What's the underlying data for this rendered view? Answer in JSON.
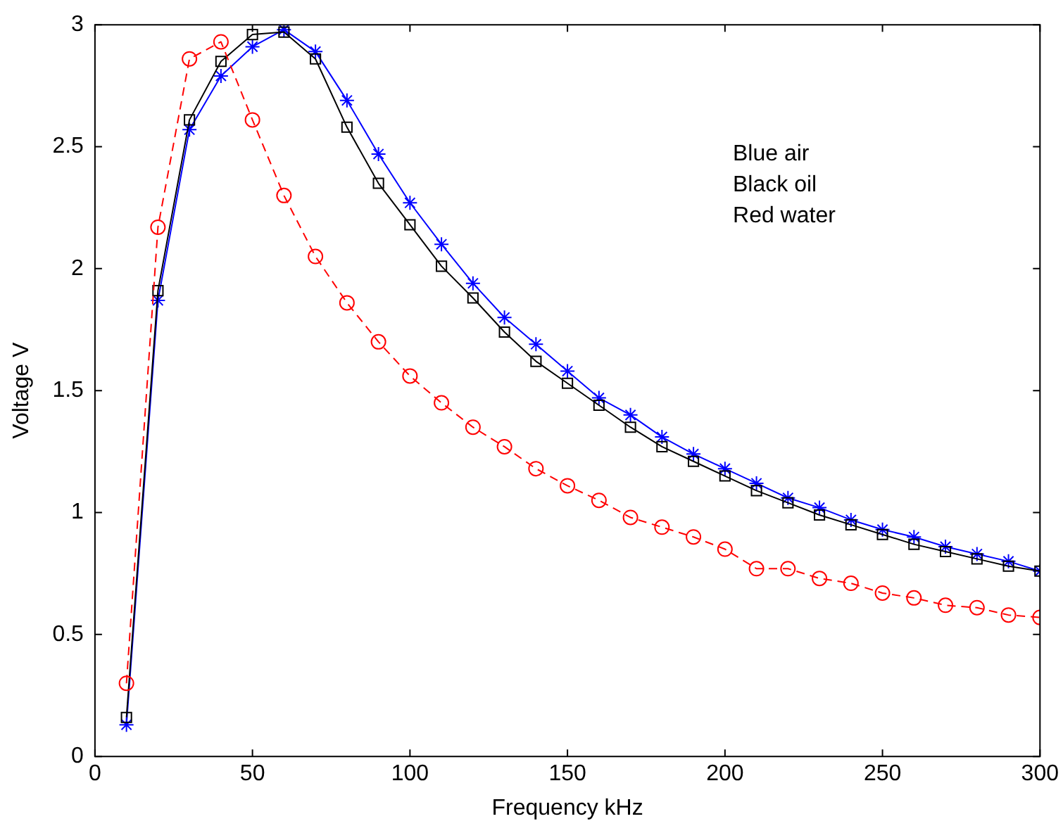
{
  "chart_data": {
    "type": "line",
    "xlabel": "Frequency kHz",
    "ylabel": "Voltage V",
    "x": [
      10,
      20,
      30,
      40,
      50,
      60,
      70,
      80,
      90,
      100,
      110,
      120,
      130,
      140,
      150,
      160,
      170,
      180,
      190,
      200,
      210,
      220,
      230,
      240,
      250,
      260,
      270,
      280,
      290,
      300
    ],
    "xlim": [
      0,
      300
    ],
    "xticks": [
      0,
      50,
      100,
      150,
      200,
      250,
      300
    ],
    "ylim": [
      0,
      3
    ],
    "yticks": [
      0,
      0.5,
      1,
      1.5,
      2,
      2.5,
      3
    ],
    "grid": false,
    "legend": false,
    "annotations": [
      "Blue air",
      "Black oil",
      "Red water"
    ],
    "series": [
      {
        "color": "#ff0000",
        "marker": "circle",
        "line_style": "dashed",
        "values": [
          0.3,
          2.17,
          2.86,
          2.93,
          2.61,
          2.3,
          2.05,
          1.86,
          1.7,
          1.56,
          1.45,
          1.35,
          1.27,
          1.18,
          1.11,
          1.05,
          0.98,
          0.94,
          0.9,
          0.85,
          0.77,
          0.77,
          0.73,
          0.71,
          0.67,
          0.65,
          0.62,
          0.61,
          0.58,
          0.57
        ]
      },
      {
        "color": "#000000",
        "marker": "square",
        "line_style": "solid",
        "values": [
          0.16,
          1.91,
          2.61,
          2.85,
          2.96,
          2.97,
          2.86,
          2.58,
          2.35,
          2.18,
          2.01,
          1.88,
          1.74,
          1.62,
          1.53,
          1.44,
          1.35,
          1.27,
          1.21,
          1.15,
          1.09,
          1.04,
          0.99,
          0.95,
          0.91,
          0.87,
          0.84,
          0.81,
          0.78,
          0.76
        ]
      },
      {
        "color": "#0000ff",
        "marker": "cross",
        "line_style": "solid",
        "values": [
          0.13,
          1.87,
          2.57,
          2.79,
          2.91,
          2.98,
          2.89,
          2.69,
          2.47,
          2.27,
          2.1,
          1.94,
          1.8,
          1.69,
          1.58,
          1.47,
          1.4,
          1.31,
          1.24,
          1.18,
          1.12,
          1.06,
          1.02,
          0.97,
          0.93,
          0.9,
          0.86,
          0.83,
          0.8,
          0.76
        ]
      }
    ]
  }
}
